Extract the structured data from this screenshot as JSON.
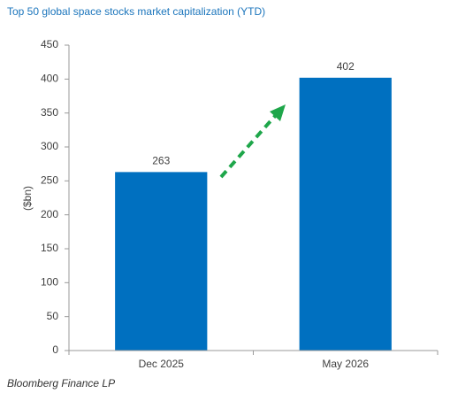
{
  "chart_data": {
    "type": "bar",
    "title": "Top 50 global space stocks market capitalization (YTD)",
    "y_label": "($bn)",
    "source": "Bloomberg Finance LP",
    "categories": [
      "Dec 2025",
      "May 2026"
    ],
    "values": [
      263,
      402
    ],
    "color": "#0070c0",
    "ylim": [
      0,
      450
    ],
    "yticks": [
      0,
      50,
      100,
      150,
      200,
      250,
      300,
      350,
      400,
      450
    ],
    "grid": false
  }
}
